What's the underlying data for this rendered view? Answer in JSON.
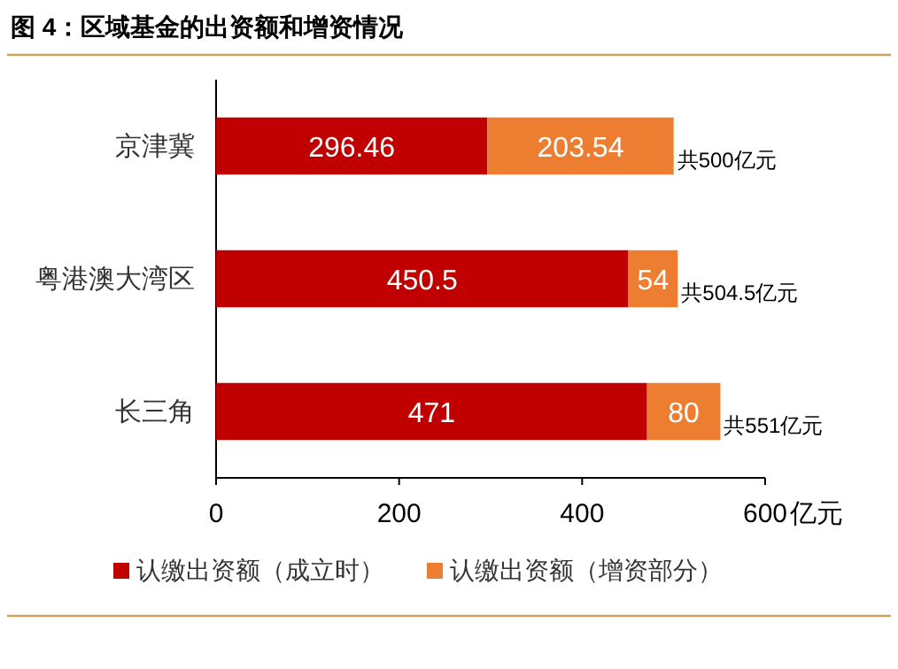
{
  "chart_data": {
    "type": "bar",
    "orientation": "horizontal",
    "stacked": true,
    "title": "图 4：区域基金的出资额和增资情况",
    "xlabel": "亿元",
    "categories": [
      "京津冀",
      "粤港澳大湾区",
      "长三角"
    ],
    "series": [
      {
        "name": "认缴出资额（成立时）",
        "color": "#c00000",
        "values": [
          296.46,
          450.5,
          471
        ]
      },
      {
        "name": "认缴出资额（增资部分）",
        "color": "#ed7d31",
        "values": [
          203.54,
          54,
          80
        ]
      }
    ],
    "totals": [
      "共500亿元",
      "共504.5亿元",
      "共551亿元"
    ],
    "xlim": [
      0,
      600
    ],
    "xticks": [
      0,
      200,
      400,
      600
    ],
    "data_labels": true,
    "grid": false,
    "legend": "bottom"
  }
}
